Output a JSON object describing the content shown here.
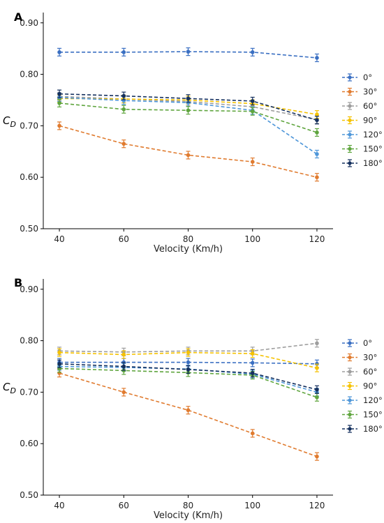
{
  "chart_data": [
    {
      "type": "line",
      "panel_label": "A",
      "ylabel": "C",
      "ylabel_sub": "D",
      "xlabel": "Velocity (Km/h)",
      "x": [
        40,
        60,
        80,
        100,
        120
      ],
      "x_ticks": [
        "40",
        "60",
        "80",
        "100",
        "120"
      ],
      "ylim": [
        0.5,
        0.92
      ],
      "y_ticks": [
        "0.50",
        "0.60",
        "0.70",
        "0.80",
        "0.90"
      ],
      "grid": false,
      "legend_position": "right",
      "series": [
        {
          "name": "0°",
          "color": "#3a6fc2",
          "values": [
            0.843,
            0.843,
            0.844,
            0.843,
            0.832
          ]
        },
        {
          "name": "30°",
          "color": "#e07b2f",
          "values": [
            0.7,
            0.665,
            0.643,
            0.63,
            0.6
          ]
        },
        {
          "name": "60°",
          "color": "#9e9e9e",
          "values": [
            0.757,
            0.752,
            0.747,
            0.737,
            0.712
          ]
        },
        {
          "name": "90°",
          "color": "#f5c200",
          "values": [
            0.753,
            0.752,
            0.75,
            0.743,
            0.722
          ]
        },
        {
          "name": "120°",
          "color": "#4f97d9",
          "values": [
            0.755,
            0.749,
            0.745,
            0.73,
            0.645
          ]
        },
        {
          "name": "150°",
          "color": "#5fa53e",
          "values": [
            0.744,
            0.732,
            0.73,
            0.728,
            0.687
          ]
        },
        {
          "name": "180°",
          "color": "#15305e",
          "values": [
            0.762,
            0.758,
            0.753,
            0.748,
            0.711
          ]
        }
      ]
    },
    {
      "type": "line",
      "panel_label": "B",
      "ylabel": "C",
      "ylabel_sub": "D",
      "xlabel": "Velocity (Km/h)",
      "x": [
        40,
        60,
        80,
        100,
        120
      ],
      "x_ticks": [
        "40",
        "60",
        "80",
        "100",
        "120"
      ],
      "ylim": [
        0.5,
        0.92
      ],
      "y_ticks": [
        "0.50",
        "0.60",
        "0.70",
        "0.80",
        "0.90"
      ],
      "grid": false,
      "legend_position": "right",
      "series": [
        {
          "name": "0°",
          "color": "#3a6fc2",
          "values": [
            0.758,
            0.758,
            0.758,
            0.757,
            0.755
          ]
        },
        {
          "name": "30°",
          "color": "#e07b2f",
          "values": [
            0.737,
            0.7,
            0.665,
            0.62,
            0.575
          ]
        },
        {
          "name": "60°",
          "color": "#9e9e9e",
          "values": [
            0.78,
            0.778,
            0.78,
            0.78,
            0.795
          ]
        },
        {
          "name": "90°",
          "color": "#f5c200",
          "values": [
            0.777,
            0.773,
            0.777,
            0.775,
            0.747
          ]
        },
        {
          "name": "120°",
          "color": "#4f97d9",
          "values": [
            0.75,
            0.748,
            0.745,
            0.735,
            0.7
          ]
        },
        {
          "name": "150°",
          "color": "#5fa53e",
          "values": [
            0.746,
            0.742,
            0.738,
            0.733,
            0.69
          ]
        },
        {
          "name": "180°",
          "color": "#15305e",
          "values": [
            0.755,
            0.75,
            0.744,
            0.737,
            0.705
          ]
        }
      ]
    }
  ]
}
